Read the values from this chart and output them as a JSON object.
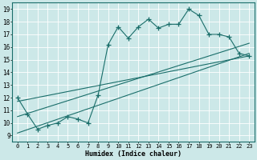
{
  "title": "",
  "xlabel": "Humidex (Indice chaleur)",
  "bg_color": "#cce8e8",
  "grid_color": "#ffffff",
  "line_color": "#1a6e6a",
  "xlim": [
    -0.5,
    23.5
  ],
  "ylim": [
    8.5,
    19.5
  ],
  "xticks": [
    0,
    1,
    2,
    3,
    4,
    5,
    6,
    7,
    8,
    9,
    10,
    11,
    12,
    13,
    14,
    15,
    16,
    17,
    18,
    19,
    20,
    21,
    22,
    23
  ],
  "yticks": [
    9,
    10,
    11,
    12,
    13,
    14,
    15,
    16,
    17,
    18,
    19
  ],
  "jagged_x": [
    0,
    1,
    2,
    3,
    4,
    5,
    6,
    7,
    8,
    9,
    10,
    11,
    12,
    13,
    14,
    15,
    16,
    17,
    18,
    19,
    20,
    21,
    22,
    23
  ],
  "jagged_y": [
    12.0,
    10.7,
    9.5,
    9.8,
    10.0,
    10.5,
    10.3,
    10.0,
    12.2,
    16.2,
    17.6,
    16.7,
    17.6,
    18.2,
    17.5,
    17.8,
    17.8,
    19.0,
    18.5,
    17.0,
    17.0,
    16.8,
    15.5,
    15.3
  ],
  "line1_x": [
    0,
    23
  ],
  "line1_y": [
    9.2,
    15.5
  ],
  "line2_x": [
    0,
    23
  ],
  "line2_y": [
    10.5,
    16.3
  ],
  "line3_x": [
    0,
    23
  ],
  "line3_y": [
    11.7,
    15.3
  ]
}
